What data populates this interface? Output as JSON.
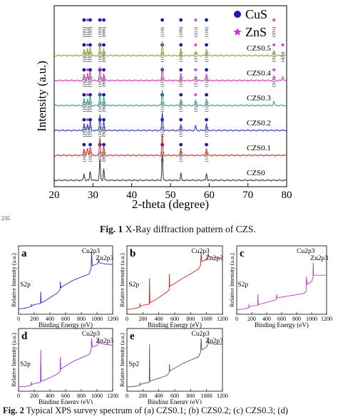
{
  "page": {
    "line_number": "235"
  },
  "captions": {
    "fig1_label": "Fig. 1",
    "fig1_text": " X-Ray diffraction pattern of CZS.",
    "fig2_label": "Fig. 2",
    "fig2_text": " Typical XPS survey spectrum of (a) CZS0.1; (b) CZS0.2; (c) CZS0.3; (d)"
  },
  "chart_data": [
    {
      "type": "line",
      "xlabel": "2-theta (degree)",
      "ylabel": "Intensity (a.u.)",
      "xlim": [
        20,
        80
      ],
      "xticks": [
        20,
        30,
        40,
        50,
        60,
        70,
        80
      ],
      "legend": {
        "placement": "top-right",
        "entries": [
          {
            "label": "CuS",
            "marker": "circle",
            "color": "#1a1aa8"
          },
          {
            "label": "ZnS",
            "marker": "star",
            "color": "#cc33cc"
          }
        ]
      },
      "series": [
        {
          "name": "CZS0",
          "color": "#333333",
          "offset": 0,
          "peaks": [
            [
              27.7,
              3
            ],
            [
              29.3,
              4
            ],
            [
              31.8,
              9
            ],
            [
              32.8,
              5
            ],
            [
              47.9,
              11
            ],
            [
              52.7,
              3
            ],
            [
              59.3,
              3
            ]
          ],
          "labels": [
            {
              "x": 27.7,
              "text": "(101)"
            },
            {
              "x": 29.3,
              "text": "(102)"
            },
            {
              "x": 31.8,
              "text": "(103)"
            },
            {
              "x": 32.8,
              "text": "(006)"
            },
            {
              "x": 47.9,
              "text": "(110)"
            },
            {
              "x": 52.7,
              "text": "(108)"
            },
            {
              "x": 59.3,
              "text": "(116)"
            }
          ]
        },
        {
          "name": "CZS0.1",
          "color": "#dd2222",
          "offset": 14,
          "peaks": [
            [
              27.7,
              3
            ],
            [
              28.6,
              3
            ],
            [
              29.3,
              4
            ],
            [
              31.8,
              8
            ],
            [
              32.8,
              4
            ],
            [
              47.9,
              9
            ],
            [
              52.7,
              3
            ],
            [
              59.3,
              3
            ]
          ],
          "labels": [
            {
              "x": 27.7,
              "text": "(101)"
            },
            {
              "x": 28.6,
              "text": "(111)"
            },
            {
              "x": 29.3,
              "text": "(102)"
            },
            {
              "x": 31.8,
              "text": "(103)"
            },
            {
              "x": 32.8,
              "text": "(006)"
            },
            {
              "x": 47.9,
              "text": "(110)"
            },
            {
              "x": 52.7,
              "text": "(108)"
            },
            {
              "x": 59.3,
              "text": "(116)"
            }
          ]
        },
        {
          "name": "CZS0.2",
          "color": "#2233bb",
          "offset": 28,
          "peaks": [
            [
              27.7,
              3
            ],
            [
              28.6,
              3
            ],
            [
              29.3,
              4
            ],
            [
              31.8,
              7
            ],
            [
              32.8,
              4
            ],
            [
              47.9,
              8
            ],
            [
              52.7,
              3
            ],
            [
              56.5,
              2
            ],
            [
              59.3,
              3
            ]
          ],
          "labels": [
            {
              "x": 27.7,
              "text": "(101)"
            },
            {
              "x": 28.6,
              "text": "(111)"
            },
            {
              "x": 29.3,
              "text": "(102)"
            },
            {
              "x": 31.8,
              "text": "(103)"
            },
            {
              "x": 32.8,
              "text": "(006)"
            },
            {
              "x": 47.9,
              "text": "(110)"
            },
            {
              "x": 52.7,
              "text": "(108)"
            },
            {
              "x": 56.5,
              "text": "(311)"
            },
            {
              "x": 59.3,
              "text": "(116)"
            }
          ]
        },
        {
          "name": "CZS0.3",
          "color": "#339988",
          "offset": 42,
          "peaks": [
            [
              27.7,
              3
            ],
            [
              28.6,
              3
            ],
            [
              29.3,
              4
            ],
            [
              31.8,
              6
            ],
            [
              32.8,
              4
            ],
            [
              47.9,
              7
            ],
            [
              52.7,
              3
            ],
            [
              56.5,
              2
            ],
            [
              59.3,
              3
            ],
            [
              76.7,
              2
            ]
          ],
          "labels": [
            {
              "x": 27.7,
              "text": "(101)"
            },
            {
              "x": 28.6,
              "text": "(111)"
            },
            {
              "x": 29.3,
              "text": "(102)"
            },
            {
              "x": 31.8,
              "text": "(103)"
            },
            {
              "x": 32.8,
              "text": "(006)"
            },
            {
              "x": 47.9,
              "text": "(110)"
            },
            {
              "x": 52.7,
              "text": "(108)"
            },
            {
              "x": 56.5,
              "text": "(311)"
            },
            {
              "x": 59.3,
              "text": "(116)"
            },
            {
              "x": 76.7,
              "text": "(331)"
            }
          ]
        },
        {
          "name": "CZS0.4",
          "color": "#cc33aa",
          "offset": 56,
          "peaks": [
            [
              27.7,
              3
            ],
            [
              28.6,
              3
            ],
            [
              29.3,
              4
            ],
            [
              31.8,
              6
            ],
            [
              32.8,
              3
            ],
            [
              47.9,
              6
            ],
            [
              52.7,
              3
            ],
            [
              56.5,
              2
            ],
            [
              59.3,
              3
            ],
            [
              76.7,
              2
            ],
            [
              79.0,
              2
            ]
          ],
          "labels": [
            {
              "x": 27.7,
              "text": "(101)"
            },
            {
              "x": 28.6,
              "text": "(111)"
            },
            {
              "x": 29.3,
              "text": "(102)"
            },
            {
              "x": 31.8,
              "text": "(103)"
            },
            {
              "x": 32.8,
              "text": "(006)"
            },
            {
              "x": 47.9,
              "text": "(110)"
            },
            {
              "x": 52.7,
              "text": "(108)"
            },
            {
              "x": 56.5,
              "text": "(311)"
            },
            {
              "x": 59.3,
              "text": "(116)"
            },
            {
              "x": 76.7,
              "text": "(331)"
            },
            {
              "x": 79.0,
              "text": "(420)"
            }
          ]
        },
        {
          "name": "CZS0.5",
          "color": "#999933",
          "offset": 70,
          "peaks": [
            [
              27.7,
              3
            ],
            [
              28.6,
              3
            ],
            [
              29.3,
              4
            ],
            [
              31.8,
              6
            ],
            [
              32.8,
              3
            ],
            [
              47.9,
              6
            ],
            [
              52.7,
              3
            ],
            [
              56.5,
              2
            ],
            [
              59.3,
              3
            ],
            [
              76.7,
              2
            ]
          ],
          "labels": [
            {
              "x": 27.7,
              "text": "(101)"
            },
            {
              "x": 28.6,
              "text": "(111)"
            },
            {
              "x": 29.3,
              "text": "(102)"
            },
            {
              "x": 31.8,
              "text": "(103)"
            },
            {
              "x": 32.8,
              "text": "(006)"
            },
            {
              "x": 47.9,
              "text": "(110)"
            },
            {
              "x": 52.7,
              "text": "(108)"
            },
            {
              "x": 56.5,
              "text": "(311)"
            },
            {
              "x": 59.3,
              "text": "(116)"
            },
            {
              "x": 76.7,
              "text": "(331)"
            }
          ]
        }
      ]
    },
    {
      "type": "line",
      "panel": "a",
      "color": "#2233bb",
      "xlabel": "Binding Energy (eV)",
      "ylabel": "Relative Intensity (a.u.)",
      "xlim": [
        0,
        1200
      ],
      "xticks": [
        0,
        200,
        400,
        600,
        800,
        1000,
        1200
      ],
      "annotations": [
        {
          "text": "S2p",
          "x": 165
        },
        {
          "text": "Cu2p3",
          "x": 935
        },
        {
          "text": "Zn2p3",
          "x": 1022
        }
      ],
      "x": [
        0,
        100,
        160,
        163,
        166,
        200,
        280,
        284,
        288,
        350,
        500,
        530,
        534,
        538,
        600,
        700,
        800,
        900,
        925,
        932,
        940,
        1000,
        1018,
        1022,
        1026,
        1100,
        1200
      ],
      "y": [
        0.06,
        0.08,
        0.1,
        0.14,
        0.11,
        0.13,
        0.15,
        0.34,
        0.16,
        0.2,
        0.32,
        0.37,
        0.5,
        0.4,
        0.45,
        0.52,
        0.57,
        0.62,
        0.72,
        0.98,
        0.75,
        0.78,
        0.82,
        0.86,
        0.8,
        0.78,
        0.77
      ]
    },
    {
      "type": "line",
      "panel": "b",
      "color": "#dd2222",
      "xlabel": "Binding Energy (eV)",
      "ylabel": "Relative Intensity (a.u.)",
      "xlim": [
        0,
        1200
      ],
      "xticks": [
        0,
        200,
        400,
        600,
        800,
        1000,
        1200
      ],
      "annotations": [
        {
          "text": "S2p",
          "x": 165
        },
        {
          "text": "Cu2p3",
          "x": 935
        },
        {
          "text": "Zn2p3",
          "x": 1022
        }
      ],
      "x": [
        0,
        100,
        160,
        163,
        166,
        200,
        280,
        284,
        288,
        350,
        500,
        530,
        534,
        538,
        600,
        700,
        800,
        900,
        925,
        932,
        940,
        1000,
        1018,
        1022,
        1026,
        1100,
        1200
      ],
      "y": [
        0.05,
        0.07,
        0.09,
        0.15,
        0.1,
        0.12,
        0.14,
        0.55,
        0.16,
        0.2,
        0.33,
        0.37,
        0.62,
        0.42,
        0.47,
        0.55,
        0.62,
        0.7,
        0.76,
        0.96,
        0.82,
        0.85,
        0.88,
        0.95,
        0.9,
        0.88,
        0.87
      ]
    },
    {
      "type": "line",
      "panel": "c",
      "color": "#cc33cc",
      "xlabel": "Binding Energy (eV)",
      "ylabel": "Relative Intensity (a.u.)",
      "xlim": [
        0,
        1200
      ],
      "xticks": [
        0,
        200,
        400,
        600,
        800,
        1000,
        1200
      ],
      "annotations": [
        {
          "text": "S2p",
          "x": 165
        },
        {
          "text": "Cu2p3",
          "x": 935
        },
        {
          "text": "Zn2p3",
          "x": 1022
        }
      ],
      "x": [
        0,
        100,
        160,
        163,
        166,
        200,
        280,
        284,
        288,
        350,
        500,
        530,
        534,
        538,
        600,
        700,
        800,
        900,
        925,
        932,
        940,
        1000,
        1018,
        1022,
        1026,
        1100,
        1200
      ],
      "y": [
        0.05,
        0.06,
        0.08,
        0.14,
        0.09,
        0.11,
        0.12,
        0.3,
        0.13,
        0.15,
        0.2,
        0.22,
        0.3,
        0.24,
        0.25,
        0.27,
        0.29,
        0.31,
        0.34,
        0.58,
        0.45,
        0.5,
        0.55,
        0.8,
        0.6,
        0.6,
        0.6
      ]
    },
    {
      "type": "line",
      "panel": "d",
      "color": "#9933cc",
      "xlabel": "Binding Energy (eV)",
      "ylabel": "Relative Intensity (a.u.)",
      "xlim": [
        0,
        1200
      ],
      "xticks": [
        0,
        200,
        400,
        600,
        800,
        1000,
        1200
      ],
      "annotations": [
        {
          "text": "S2p",
          "x": 165
        },
        {
          "text": "Cu2p3",
          "x": 935
        },
        {
          "text": "Zn2p3",
          "x": 1022
        }
      ],
      "x": [
        0,
        100,
        160,
        163,
        166,
        200,
        280,
        284,
        288,
        350,
        500,
        530,
        534,
        538,
        600,
        700,
        800,
        900,
        925,
        932,
        940,
        1000,
        1018,
        1022,
        1026,
        1100,
        1200
      ],
      "y": [
        0.05,
        0.06,
        0.08,
        0.14,
        0.09,
        0.11,
        0.13,
        0.7,
        0.15,
        0.18,
        0.28,
        0.32,
        0.58,
        0.36,
        0.42,
        0.5,
        0.56,
        0.62,
        0.7,
        0.9,
        0.75,
        0.78,
        0.82,
        0.9,
        0.82,
        0.8,
        0.78
      ]
    },
    {
      "type": "line",
      "panel": "e",
      "color": "#555555",
      "xlabel": "Binding Energy (eV)",
      "ylabel": "Relative Intensity (a.u.)",
      "xlim": [
        0,
        1200
      ],
      "xticks": [
        0,
        200,
        400,
        600,
        800,
        1000,
        1200
      ],
      "annotations": [
        {
          "text": "Sp2",
          "x": 165
        },
        {
          "text": "Cu2p3",
          "x": 935
        },
        {
          "text": "Zn2p3",
          "x": 1022
        }
      ],
      "x": [
        0,
        100,
        160,
        163,
        166,
        200,
        280,
        284,
        288,
        350,
        500,
        530,
        534,
        538,
        600,
        700,
        800,
        900,
        925,
        932,
        940,
        1000,
        1018,
        1022,
        1026,
        1100,
        1200
      ],
      "y": [
        0.05,
        0.06,
        0.08,
        0.13,
        0.09,
        0.11,
        0.13,
        0.8,
        0.15,
        0.18,
        0.25,
        0.3,
        0.45,
        0.33,
        0.38,
        0.46,
        0.52,
        0.58,
        0.66,
        0.9,
        0.7,
        0.75,
        0.8,
        0.92,
        0.82,
        0.8,
        0.8
      ]
    }
  ]
}
